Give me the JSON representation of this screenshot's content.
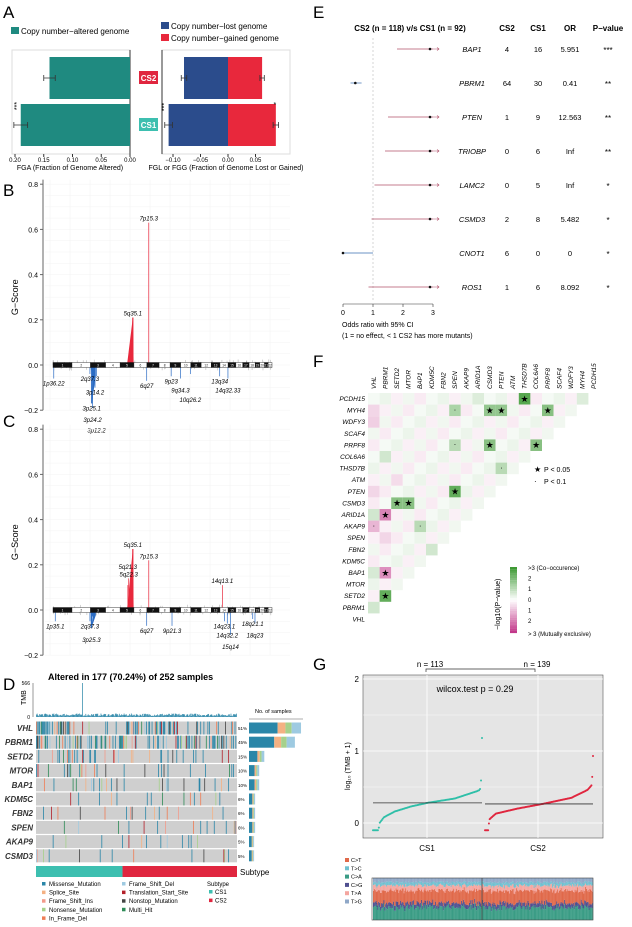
{
  "panels": {
    "a": "A",
    "b": "B",
    "c": "C",
    "d": "D",
    "e": "E",
    "f": "F",
    "g": "G"
  },
  "chart_data": [
    {
      "id": "A-left",
      "type": "bar",
      "legend": "Copy number−altered genome",
      "categories": [
        "CS2",
        "CS1"
      ],
      "values": [
        0.14,
        0.19
      ],
      "errors": [
        0.01,
        0.012
      ],
      "significance": [
        "",
        "***"
      ],
      "xlabel": "FGA (Fraction of Genome Altered)",
      "xticks": [
        "0.20",
        "0.15",
        "0.10",
        "0.05",
        "0.00"
      ],
      "xlim": [
        0.2,
        0.0
      ],
      "color": "#1f8a80"
    },
    {
      "id": "A-right",
      "type": "bar",
      "categories": [
        "CS2",
        "CS1"
      ],
      "series": [
        {
          "name": "Copy number−lost genome",
          "values": [
            -0.08,
            -0.108
          ],
          "errors": [
            0.005,
            0.007
          ],
          "significance": [
            "",
            "***"
          ],
          "color": "#2b4c8c"
        },
        {
          "name": "Copy number−gained genome",
          "values": [
            0.062,
            0.087
          ],
          "errors": [
            0.004,
            0.005
          ],
          "significance": [
            "",
            "*"
          ],
          "color": "#e8283c"
        }
      ],
      "xlabel": "FGL or FGG (Fraction of Genome Lost or Gained)",
      "xticks": [
        "−0.10",
        "−0.05",
        "0.00",
        "0.05"
      ],
      "xlim": [
        -0.12,
        0.1
      ],
      "category_colors": {
        "CS2": "#e0263f",
        "CS1": "#3dbfb0"
      }
    },
    {
      "id": "B",
      "type": "area",
      "ylabel": "G−Score",
      "ylim": [
        -0.2,
        0.8
      ],
      "yticks": [
        "0.8",
        "0.6",
        "0.4",
        "0.2",
        "0.0",
        "−0.2"
      ],
      "chromosomes": [
        "1",
        "2",
        "3",
        "4",
        "5",
        "6",
        "7",
        "8",
        "9",
        "10",
        "11",
        "12",
        "13",
        "14",
        "15",
        "16",
        "17",
        "18",
        "19",
        "20",
        "21",
        "22"
      ],
      "peaks": [
        {
          "label": "7p15.3",
          "chrom": 7,
          "pos": 0.15,
          "g": 0.63,
          "type": "amp"
        },
        {
          "label": "5q35.1",
          "chrom": 5,
          "pos": 0.92,
          "g": 0.21,
          "type": "amp",
          "broad": true
        },
        {
          "label": "1p36.22",
          "chrom": 1,
          "pos": 0.04,
          "g": -0.06,
          "type": "del"
        },
        {
          "label": "2q37.3",
          "chrom": 2,
          "pos": 0.97,
          "g": -0.04,
          "type": "del"
        },
        {
          "label": "3p25.1",
          "chrom": 3,
          "pos": 0.08,
          "g": -0.17,
          "type": "del",
          "broad": true
        },
        {
          "label": "3p24.2",
          "chrom": 3,
          "pos": 0.14,
          "g": -0.19,
          "type": "del"
        },
        {
          "label": "3p14.2",
          "chrom": 3,
          "pos": 0.3,
          "g": -0.1,
          "type": "del"
        },
        {
          "label": "3p12.2",
          "chrom": 3,
          "pos": 0.4,
          "g": -0.05,
          "type": "del"
        },
        {
          "label": "6q27",
          "chrom": 6,
          "pos": 0.98,
          "g": -0.07,
          "type": "del"
        },
        {
          "label": "9p23",
          "chrom": 9,
          "pos": 0.1,
          "g": -0.05,
          "type": "del"
        },
        {
          "label": "9q34.3",
          "chrom": 9,
          "pos": 0.98,
          "g": -0.06,
          "type": "del"
        },
        {
          "label": "10q26.2",
          "chrom": 10,
          "pos": 0.95,
          "g": -0.04,
          "type": "del"
        },
        {
          "label": "13q34",
          "chrom": 13,
          "pos": 0.97,
          "g": -0.05,
          "type": "del"
        },
        {
          "label": "14q32.33",
          "chrom": 14,
          "pos": 0.98,
          "g": -0.06,
          "type": "del"
        }
      ]
    },
    {
      "id": "C",
      "type": "area",
      "ylabel": "G−Score",
      "ylim": [
        -0.2,
        0.8
      ],
      "yticks": [
        "0.8",
        "0.6",
        "0.4",
        "0.2",
        "0.0",
        "−0.2"
      ],
      "chromosomes": [
        "1",
        "2",
        "3",
        "4",
        "5",
        "6",
        "7",
        "8",
        "9",
        "10",
        "11",
        "12",
        "13",
        "14",
        "15",
        "16",
        "17",
        "18",
        "19",
        "20",
        "21",
        "22"
      ],
      "peaks": [
        {
          "label": "5q35.1",
          "chrom": 5,
          "pos": 0.92,
          "g": 0.27,
          "type": "amp",
          "broad": true
        },
        {
          "label": "5q22.3",
          "chrom": 5,
          "pos": 0.62,
          "g": 0.14,
          "type": "amp"
        },
        {
          "label": "5q21.3",
          "chrom": 5,
          "pos": 0.56,
          "g": 0.11,
          "type": "amp"
        },
        {
          "label": "7p15.3",
          "chrom": 7,
          "pos": 0.15,
          "g": 0.22,
          "type": "amp"
        },
        {
          "label": "14q13.1",
          "chrom": 14,
          "pos": 0.3,
          "g": 0.11,
          "type": "amp"
        },
        {
          "label": "1p35.1",
          "chrom": 1,
          "pos": 0.12,
          "g": -0.05,
          "type": "del"
        },
        {
          "label": "2q37.3",
          "chrom": 2,
          "pos": 0.97,
          "g": -0.05,
          "type": "del"
        },
        {
          "label": "3p25.3",
          "chrom": 3,
          "pos": 0.06,
          "g": -0.08,
          "type": "del",
          "broad": true
        },
        {
          "label": "6q27",
          "chrom": 6,
          "pos": 0.98,
          "g": -0.07,
          "type": "del"
        },
        {
          "label": "9p21.3",
          "chrom": 9,
          "pos": 0.18,
          "g": -0.07,
          "type": "del"
        },
        {
          "label": "14q23.1",
          "chrom": 14,
          "pos": 0.55,
          "g": -0.05,
          "type": "del"
        },
        {
          "label": "14q32.2",
          "chrom": 14,
          "pos": 0.9,
          "g": -0.06,
          "type": "del"
        },
        {
          "label": "15q14",
          "chrom": 15,
          "pos": 0.3,
          "g": -0.11,
          "type": "del"
        },
        {
          "label": "18q21.1",
          "chrom": 18,
          "pos": 0.6,
          "g": -0.04,
          "type": "del"
        },
        {
          "label": "18q23",
          "chrom": 18,
          "pos": 0.97,
          "g": -0.06,
          "type": "del"
        }
      ]
    },
    {
      "id": "D",
      "type": "heatmap",
      "title": "Altered in 177 (70.24%) of 252 samples",
      "tmb_label": "TMB",
      "tmb_ticks": [
        "566",
        "0"
      ],
      "barplot_label": "No. of samples",
      "genes": [
        "VHL",
        "PBRM1",
        "SETD2",
        "MTOR",
        "BAP1",
        "KDM5C",
        "FBN2",
        "SPEN",
        "AKAP9",
        "CSMD3"
      ],
      "percent_labels": [
        "51%",
        "45%",
        "15%",
        "10%",
        "10%",
        "6%",
        "6%",
        "6%",
        "5%",
        "5%"
      ],
      "percent": [
        51,
        45,
        15,
        10,
        10,
        6,
        6,
        6,
        5,
        5
      ],
      "n_samples": 252,
      "subtype_label": "Subtype",
      "subtype_counts": {
        "CS1": 113,
        "CS2": 139
      },
      "legend": [
        {
          "name": "Missense_Mutation",
          "color": "#2a86a8"
        },
        {
          "name": "Splice_Site",
          "color": "#f4b183"
        },
        {
          "name": "Frame_Shift_Ins",
          "color": "#f29a8a"
        },
        {
          "name": "Nonsense_Mutation",
          "color": "#a6d18b"
        },
        {
          "name": "In_Frame_Del",
          "color": "#ef7d55"
        },
        {
          "name": "Frame_Shift_Del",
          "color": "#9ecae1"
        },
        {
          "name": "Translation_Start_Site",
          "color": "#b3202a"
        },
        {
          "name": "Nonstop_Mutation",
          "color": "#444444"
        },
        {
          "name": "Multi_Hit",
          "color": "#2e8b57"
        }
      ],
      "subtype_legend": {
        "title": "Subtype",
        "items": [
          {
            "name": "CS1",
            "color": "#3dbfb0"
          },
          {
            "name": "CS2",
            "color": "#e0263f"
          }
        ]
      }
    },
    {
      "id": "E",
      "type": "scatter",
      "title": "CS2 (n = 118) v/s CS1 (n = 92)",
      "headers": [
        "CS2",
        "CS1",
        "OR",
        "P−value"
      ],
      "rows": [
        {
          "gene": "BAP1",
          "cs2": "4",
          "cs1": "16",
          "or": "5.951",
          "p": "***",
          "est": 5.951,
          "lo": 1.8,
          "hi": 3.2
        },
        {
          "gene": "PBRM1",
          "cs2": "64",
          "cs1": "30",
          "or": "0.41",
          "p": "**",
          "est": 0.41,
          "lo": 0.25,
          "hi": 0.62
        },
        {
          "gene": "PTEN",
          "cs2": "1",
          "cs1": "9",
          "or": "12.563",
          "p": "**",
          "est": 12.563,
          "lo": 1.5,
          "hi": 3.2
        },
        {
          "gene": "TRIOBP",
          "cs2": "0",
          "cs1": "6",
          "or": "Inf",
          "p": "**",
          "est": 3.2,
          "lo": 1.4,
          "hi": 3.2
        },
        {
          "gene": "LAMC2",
          "cs2": "0",
          "cs1": "5",
          "or": "Inf",
          "p": "*",
          "est": 3.2,
          "lo": 1.05,
          "hi": 3.2
        },
        {
          "gene": "CSMD3",
          "cs2": "2",
          "cs1": "8",
          "or": "5.482",
          "p": "*",
          "est": 5.482,
          "lo": 0.95,
          "hi": 3.2
        },
        {
          "gene": "CNOT1",
          "cs2": "6",
          "cs1": "0",
          "or": "0",
          "p": "*",
          "est": 0,
          "lo": 0,
          "hi": 1.0
        },
        {
          "gene": "ROS1",
          "cs2": "1",
          "cs1": "6",
          "or": "8.092",
          "p": "*",
          "est": 8.092,
          "lo": 0.85,
          "hi": 3.2
        }
      ],
      "xticks": [
        "0",
        "1",
        "2",
        "3"
      ],
      "xlim": [
        0,
        3
      ],
      "xlabel": "Odds ratio with 95% CI",
      "note": "(1 = no effect, < 1 CS2 has more mutants)"
    },
    {
      "id": "F",
      "type": "heatmap",
      "genes": [
        "VHL",
        "PBRM1",
        "SETD2",
        "MTOR",
        "BAP1",
        "KDM5C",
        "FBN2",
        "SPEN",
        "AKAP9",
        "ARID1A",
        "CSMD3",
        "PTEN",
        "ATM",
        "THSD7B",
        "COL6A6",
        "PRPF8",
        "SCAF4",
        "WDFY3",
        "MYH4",
        "PCDH15"
      ],
      "cells": [
        {
          "row": "PCDH15",
          "col": "THSD7B",
          "v": 2.6,
          "sig": "*"
        },
        {
          "row": "PCDH15",
          "col": "ARID1A",
          "v": 0.4
        },
        {
          "row": "PCDH15",
          "col": "MYH4",
          "v": 0.4
        },
        {
          "row": "MYH4",
          "col": "VHL",
          "v": -0.5
        },
        {
          "row": "MYH4",
          "col": "SPEN",
          "v": 1.2,
          "sig": "."
        },
        {
          "row": "MYH4",
          "col": "CSMD3",
          "v": 1.6,
          "sig": "*"
        },
        {
          "row": "MYH4",
          "col": "PTEN",
          "v": 1.6,
          "sig": "*"
        },
        {
          "row": "MYH4",
          "col": "PRPF8",
          "v": 1.8,
          "sig": "*"
        },
        {
          "row": "WDFY3",
          "col": "VHL",
          "v": -0.6
        },
        {
          "row": "PRPF8",
          "col": "SPEN",
          "v": 1.0,
          "sig": "."
        },
        {
          "row": "PRPF8",
          "col": "CSMD3",
          "v": 1.8,
          "sig": "*"
        },
        {
          "row": "PRPF8",
          "col": "COL6A6",
          "v": 1.8,
          "sig": "*"
        },
        {
          "row": "COL6A6",
          "col": "PBRM1",
          "v": 0.6
        },
        {
          "row": "THSD7B",
          "col": "PTEN",
          "v": 1.0,
          "sig": "."
        },
        {
          "row": "ATM",
          "col": "SETD2",
          "v": -0.4
        },
        {
          "row": "PTEN",
          "col": "VHL",
          "v": -0.5
        },
        {
          "row": "PTEN",
          "col": "SPEN",
          "v": 2.4,
          "sig": "*"
        },
        {
          "row": "CSMD3",
          "col": "SETD2",
          "v": 1.8,
          "sig": "*"
        },
        {
          "row": "CSMD3",
          "col": "MTOR",
          "v": 1.8,
          "sig": "*"
        },
        {
          "row": "ARID1A",
          "col": "VHL",
          "v": 0.6
        },
        {
          "row": "ARID1A",
          "col": "PBRM1",
          "v": -1.8,
          "sig": "*"
        },
        {
          "row": "AKAP9",
          "col": "VHL",
          "v": -1.0,
          "sig": "."
        },
        {
          "row": "AKAP9",
          "col": "BAP1",
          "v": 1.0,
          "sig": "."
        },
        {
          "row": "SPEN",
          "col": "PBRM1",
          "v": -0.5
        },
        {
          "row": "FBN2",
          "col": "KDM5C",
          "v": 0.6
        },
        {
          "row": "BAP1",
          "col": "VHL",
          "v": 0.5
        },
        {
          "row": "BAP1",
          "col": "PBRM1",
          "v": -1.6,
          "sig": "*"
        },
        {
          "row": "SETD2",
          "col": "PBRM1",
          "v": 2.4,
          "sig": "*"
        },
        {
          "row": "PBRM1",
          "col": "VHL",
          "v": 0.6
        }
      ],
      "sig_legend": [
        {
          "symbol": "★",
          "label": "P < 0.05"
        },
        {
          "symbol": "·",
          "label": "P < 0.1"
        }
      ],
      "colorbar_title": "−log10(P−value)",
      "colorbar_labels": [
        ">3 (Co−occurence)",
        "2",
        "1",
        "0",
        "1",
        "2",
        "> 3 (Mutually exclusive)"
      ],
      "colors": {
        "co": "#3f9a35",
        "excl": "#c2388a"
      }
    },
    {
      "id": "G",
      "type": "scatter",
      "ylabel": "log₁₀ (TMB + 1)",
      "yticks": [
        "2",
        "1",
        "0"
      ],
      "ylim": [
        -0.15,
        2.05
      ],
      "categories": [
        "CS1",
        "CS2"
      ],
      "n_labels": [
        "n = 113",
        "n = 139"
      ],
      "n": [
        113,
        139
      ],
      "test_label": "wilcox.test p = 0.29",
      "medians": [
        0.28,
        0.265
      ],
      "sorted_quantiles": {
        "CS1": [
          [
            0,
            -0.1
          ],
          [
            0.05,
            -0.1
          ],
          [
            0.06,
            0.0
          ],
          [
            0.1,
            0.08
          ],
          [
            0.2,
            0.16
          ],
          [
            0.35,
            0.23
          ],
          [
            0.5,
            0.28
          ],
          [
            0.75,
            0.34
          ],
          [
            0.95,
            0.44
          ],
          [
            0.98,
            0.46
          ],
          [
            0.99,
            0.52
          ],
          [
            1.0,
            1.18
          ]
        ],
        "CS2": [
          [
            0,
            -0.1
          ],
          [
            0.03,
            -0.1
          ],
          [
            0.04,
            0.05
          ],
          [
            0.1,
            0.13
          ],
          [
            0.3,
            0.2
          ],
          [
            0.55,
            0.27
          ],
          [
            0.8,
            0.35
          ],
          [
            0.95,
            0.46
          ],
          [
            0.99,
            0.53
          ],
          [
            1.0,
            0.93
          ]
        ]
      },
      "colors": {
        "CS1": "#2fbfa8",
        "CS2": "#e0263f"
      },
      "signature_legend": [
        {
          "name": "C>T",
          "color": "#e0694a"
        },
        {
          "name": "T>C",
          "color": "#6fc0d0"
        },
        {
          "name": "C>A",
          "color": "#3a9c85"
        },
        {
          "name": "C>G",
          "color": "#4f4f8f"
        },
        {
          "name": "T>A",
          "color": "#f4a6a0"
        },
        {
          "name": "T>G",
          "color": "#8fa8c8"
        }
      ]
    }
  ]
}
